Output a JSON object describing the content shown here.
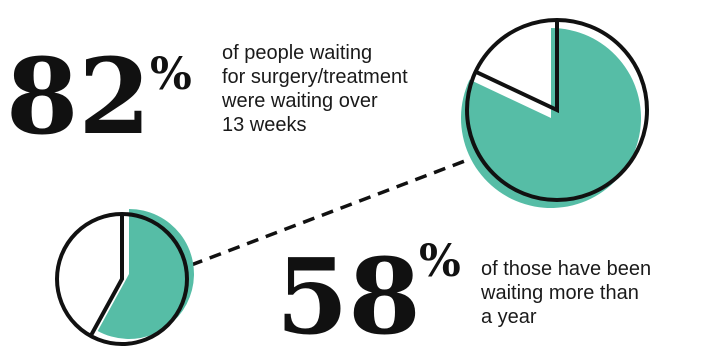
{
  "chart_data": [
    {
      "type": "pie",
      "values": [
        82,
        18
      ],
      "big_number": "82",
      "percent_sign": "%",
      "caption_lines": [
        "of people waiting",
        "for surgery/treatment",
        "were waiting over",
        "13 weeks"
      ]
    },
    {
      "type": "pie",
      "values": [
        58,
        42
      ],
      "big_number": "58",
      "percent_sign": "%",
      "caption_lines": [
        "of those have been",
        "waiting more than",
        "a year"
      ]
    }
  ],
  "colors": {
    "accent": "#56bda6",
    "outline": "#111111",
    "text": "#1a1a1a",
    "background": "#ffffff"
  }
}
